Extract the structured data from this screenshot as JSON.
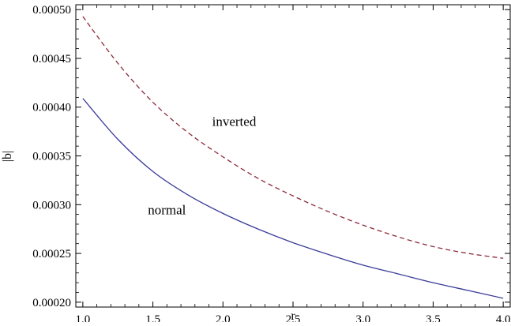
{
  "chart_data": {
    "type": "line",
    "title": "",
    "xlabel": "r",
    "ylabel": "|b|",
    "xlim": [
      0.95,
      4.05
    ],
    "ylim": [
      0.000195,
      0.000505
    ],
    "x_ticks": [
      "1.0",
      "1.5",
      "2.0",
      "2.5",
      "3.0",
      "3.5",
      "4.0"
    ],
    "y_ticks": [
      "0.00020",
      "0.00025",
      "0.00030",
      "0.00035",
      "0.00040",
      "0.00045",
      "0.00050"
    ],
    "grid": false,
    "legend": "none",
    "series": [
      {
        "name": "inverted",
        "style": "dashed",
        "color": "#8b2a3a",
        "x": [
          1.0,
          1.25,
          1.5,
          1.75,
          2.0,
          2.25,
          2.5,
          2.75,
          3.0,
          3.25,
          3.5,
          3.75,
          4.0
        ],
        "y": [
          0.000493,
          0.000445,
          0.000405,
          0.000374,
          0.000349,
          0.000327,
          0.000309,
          0.000293,
          0.000279,
          0.000267,
          0.000257,
          0.00025,
          0.000245
        ]
      },
      {
        "name": "normal",
        "style": "solid",
        "color": "#3b3b9a",
        "x": [
          1.0,
          1.25,
          1.5,
          1.75,
          2.0,
          2.25,
          2.5,
          2.75,
          3.0,
          3.25,
          3.5,
          3.75,
          4.0
        ],
        "y": [
          0.000409,
          0.000367,
          0.000334,
          0.00031,
          0.000291,
          0.000275,
          0.000261,
          0.000249,
          0.000238,
          0.000229,
          0.00022,
          0.000212,
          0.000204
        ]
      }
    ],
    "annotations": [
      {
        "text": "inverted",
        "x": 2.08,
        "y": 0.000385
      },
      {
        "text": "normal",
        "x": 1.6,
        "y": 0.000294
      }
    ]
  }
}
